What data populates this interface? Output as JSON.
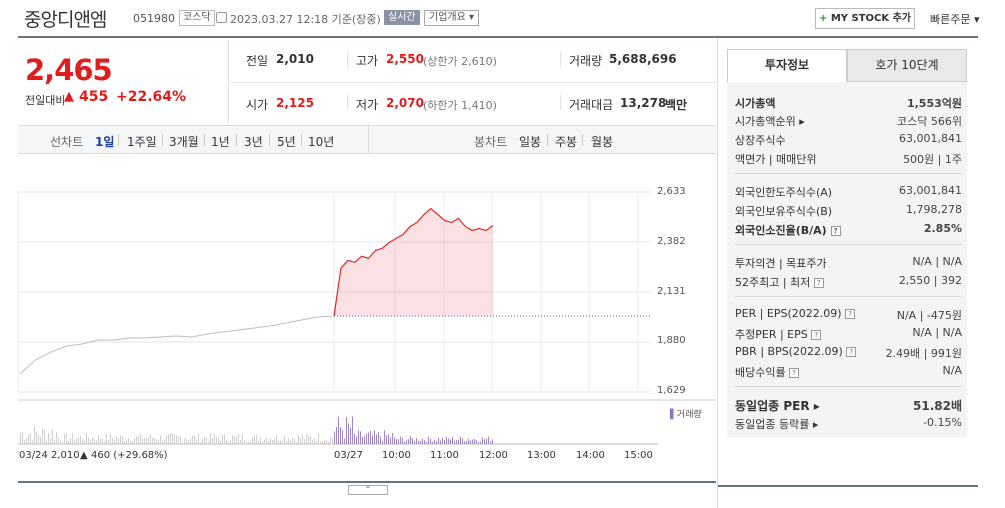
{
  "header": {
    "name": "중앙디앤엠",
    "code": "051980",
    "market": "코스닥",
    "time": "2023.03.27 12:18  기준(장중)",
    "realtime": "실시간",
    "company_info": "기업개요 ▾",
    "mystock": "MY STOCK 추가",
    "quick_order": "빠른주문 ▾"
  },
  "price": {
    "current": "2,465",
    "change_label": "전일대비",
    "change_arrow": "▲",
    "change_amount": "455",
    "change_rate": "+22.64%"
  },
  "summary": {
    "prev_label": "전일",
    "prev": "2,010",
    "high_label": "고가",
    "high": "2,550",
    "upper_limit": "(상한가 2,610)",
    "volume_label": "거래량",
    "volume": "5,688,696",
    "open_label": "시가",
    "open": "2,125",
    "low_label": "저가",
    "low": "2,070",
    "lower_limit": "(하한가 1,410)",
    "amount_label": "거래대금",
    "amount": "13,278",
    "amount_unit": "백만"
  },
  "chart_tabs": {
    "line_label": "선차트",
    "periods": [
      "1일",
      "1주일",
      "3개월",
      "1년",
      "3년",
      "5년",
      "10년"
    ],
    "candle_label": "봉차트",
    "candles": [
      "일봉",
      "주봉",
      "월봉"
    ]
  },
  "chart_data": {
    "type": "line",
    "y_ticks": [
      "2,633",
      "2,382",
      "2,131",
      "1,880",
      "1,629"
    ],
    "ylim": [
      1629,
      2633
    ],
    "x_ticks": [
      "03/27",
      "10:00",
      "11:00",
      "12:00",
      "13:00",
      "14:00",
      "15:00"
    ],
    "reference_price": 2010,
    "volume_legend": "거래량",
    "prev_day_date": "03/24",
    "prev_day_close": "2,010",
    "prev_day_arrow": "▲",
    "prev_day_change": "460 (+29.68%)",
    "prev_day_series": [
      1720,
      1790,
      1830,
      1860,
      1870,
      1890,
      1890,
      1900,
      1900,
      1905,
      1910,
      1905,
      1920,
      1930,
      1940,
      1950,
      1960,
      1975,
      1990,
      2005,
      2010
    ],
    "today_series": [
      2010,
      2250,
      2290,
      2280,
      2310,
      2300,
      2340,
      2350,
      2380,
      2400,
      2420,
      2460,
      2480,
      2520,
      2550,
      2520,
      2490,
      2480,
      2500,
      2460,
      2440,
      2450,
      2440,
      2465
    ]
  },
  "panel": {
    "tab_info": "투자정보",
    "tab_hoga": "호가 10단계",
    "rows1": [
      {
        "label": "시가총액",
        "value": "1,553억원"
      },
      {
        "label": "시가총액순위 ▸",
        "value": "코스닥 566위"
      },
      {
        "label": "상장주식수",
        "value": "63,001,841"
      },
      {
        "label": "액면가 | 매매단위",
        "value": "500원 | 1주"
      }
    ],
    "rows2": [
      {
        "label": "외국인한도주식수(A)",
        "value": "63,001,841"
      },
      {
        "label": "외국인보유주식수(B)",
        "value": "1,798,278"
      },
      {
        "label": "외국인소진율(B/A)",
        "value": "2.85%"
      }
    ],
    "rows3": [
      {
        "label": "투자의견 | 목표주가",
        "value": "N/A | N/A"
      },
      {
        "label": "52주최고 | 최저",
        "value": "2,550 | 392"
      }
    ],
    "rows4": [
      {
        "label": "PER | EPS(2022.09)",
        "value": "N/A | -475원"
      },
      {
        "label": "추정PER | EPS",
        "value": "N/A | N/A"
      },
      {
        "label": "PBR | BPS(2022.09)",
        "value": "2.49배 | 991원"
      },
      {
        "label": "배당수익률",
        "value": "N/A"
      }
    ],
    "rows5": [
      {
        "label": "동일업종 PER ▸",
        "value": "51.82배"
      },
      {
        "label": "동일업종 등락률 ▸",
        "value": "-0.15%"
      }
    ]
  },
  "collapse": "⌃"
}
